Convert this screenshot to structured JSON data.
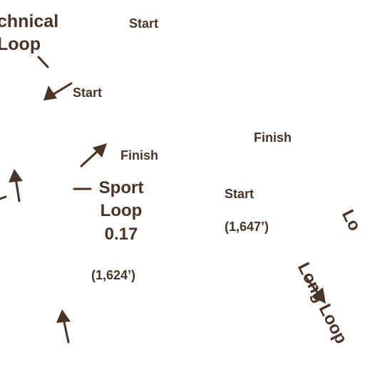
{
  "colors": {
    "ink": "#4a3426",
    "background": "#ffffff"
  },
  "technical_loop": {
    "line1": "chnical",
    "line2": "Loop"
  },
  "sport_loop": {
    "line1": "Sport",
    "line2": "Loop",
    "distance": "0.17",
    "elevation": "(1,624’)"
  },
  "long_loop": {
    "label": "Long Loop",
    "partial_label": "Lo"
  },
  "markers": {
    "start_top": "Start",
    "start_upper_left": "Start",
    "finish_left": "Finish",
    "finish_right": "Finish",
    "start_right": "Start",
    "elevation_right": "(1,647’)"
  },
  "icons": [
    "arrow-icon",
    "leader-line"
  ]
}
